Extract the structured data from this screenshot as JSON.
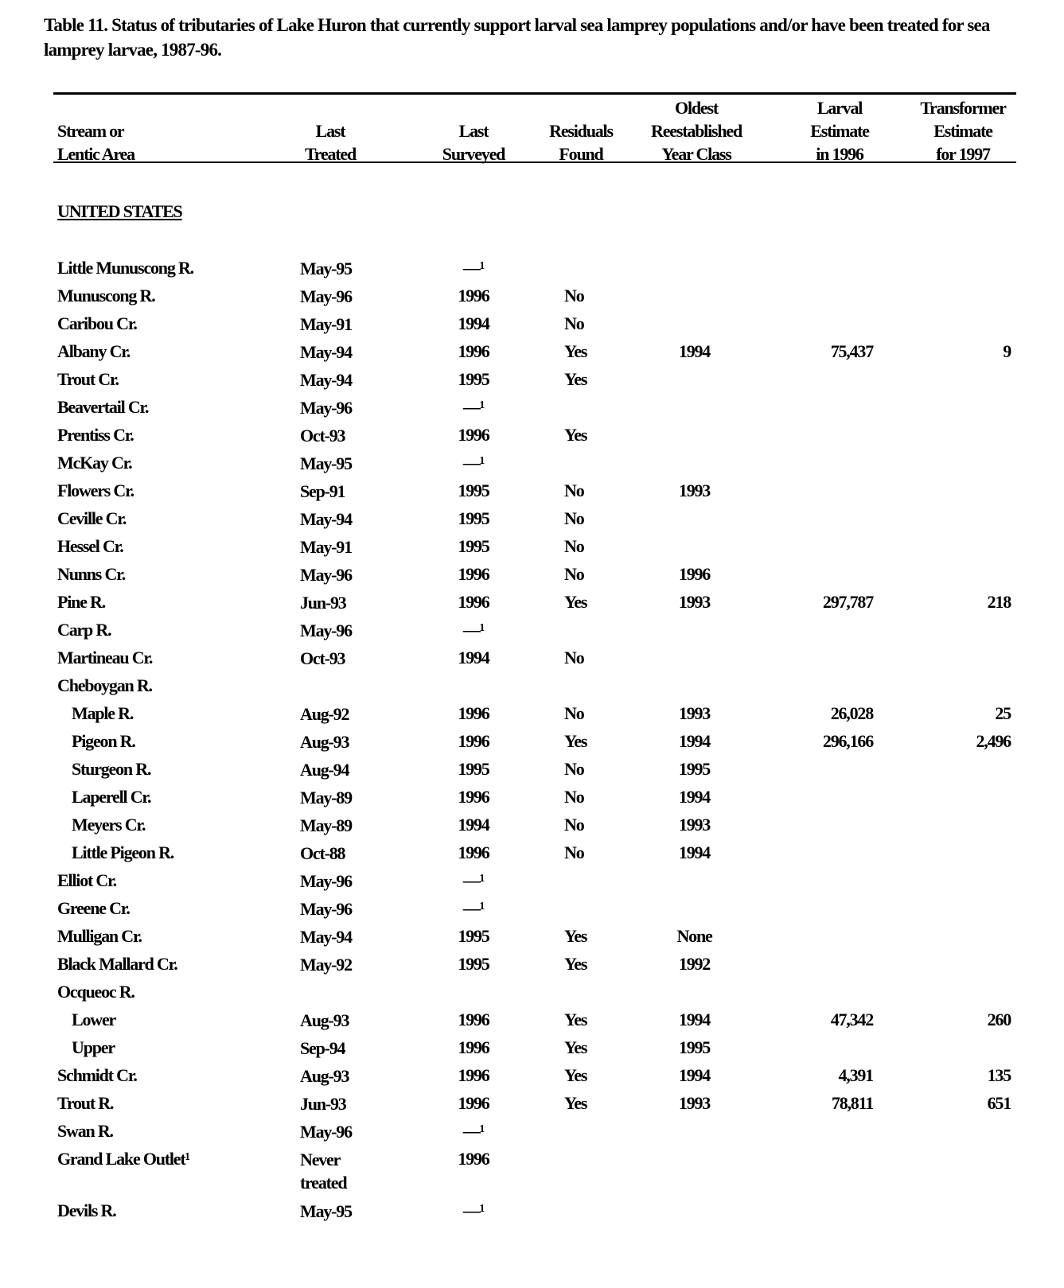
{
  "title": "Table 11.  Status of tributaries of Lake Huron that currently support larval sea lamprey populations and/or have been treated for sea lamprey larvae, 1987-96.",
  "headers": {
    "stream": [
      "Stream or",
      "Lentic Area"
    ],
    "treated": [
      "Last",
      "Treated"
    ],
    "surveyed": [
      "Last",
      "Surveyed"
    ],
    "residuals": [
      "Residuals",
      "Found"
    ],
    "oldest": [
      "Oldest",
      "Reestablished",
      "Year Class"
    ],
    "larval": [
      "Larval",
      "Estimate",
      "in 1996"
    ],
    "transformer": [
      "Transformer",
      "Estimate",
      "for 1997"
    ]
  },
  "section": "UNITED STATES",
  "rows": [
    {
      "name": "Little Munuscong R.",
      "treated": "May-95",
      "surveyed": "—¹",
      "residuals": "",
      "oldest": "",
      "larval": "",
      "transformer": ""
    },
    {
      "name": "Munuscong R.",
      "treated": "May-96",
      "surveyed": "1996",
      "residuals": "No",
      "oldest": "",
      "larval": "",
      "transformer": ""
    },
    {
      "name": "Caribou Cr.",
      "treated": "May-91",
      "surveyed": "1994",
      "residuals": "No",
      "oldest": "",
      "larval": "",
      "transformer": ""
    },
    {
      "name": "Albany Cr.",
      "treated": "May-94",
      "surveyed": "1996",
      "residuals": "Yes",
      "oldest": "1994",
      "larval": "75,437",
      "transformer": "9"
    },
    {
      "name": "Trout Cr.",
      "treated": "May-94",
      "surveyed": "1995",
      "residuals": "Yes",
      "oldest": "",
      "larval": "",
      "transformer": ""
    },
    {
      "name": "Beavertail Cr.",
      "treated": "May-96",
      "surveyed": "—¹",
      "residuals": "",
      "oldest": "",
      "larval": "",
      "transformer": ""
    },
    {
      "name": "Prentiss Cr.",
      "treated": "Oct-93",
      "surveyed": "1996",
      "residuals": "Yes",
      "oldest": "",
      "larval": "",
      "transformer": ""
    },
    {
      "name": "McKay Cr.",
      "treated": "May-95",
      "surveyed": "—¹",
      "residuals": "",
      "oldest": "",
      "larval": "",
      "transformer": ""
    },
    {
      "name": "Flowers Cr.",
      "treated": "Sep-91",
      "surveyed": "1995",
      "residuals": "No",
      "oldest": "1993",
      "larval": "",
      "transformer": ""
    },
    {
      "name": "Ceville Cr.",
      "treated": "May-94",
      "surveyed": "1995",
      "residuals": "No",
      "oldest": "",
      "larval": "",
      "transformer": ""
    },
    {
      "name": "Hessel Cr.",
      "treated": "May-91",
      "surveyed": "1995",
      "residuals": "No",
      "oldest": "",
      "larval": "",
      "transformer": ""
    },
    {
      "name": "Nunns Cr.",
      "treated": "May-96",
      "surveyed": "1996",
      "residuals": "No",
      "oldest": "1996",
      "larval": "",
      "transformer": ""
    },
    {
      "name": "Pine R.",
      "treated": "Jun-93",
      "surveyed": "1996",
      "residuals": "Yes",
      "oldest": "1993",
      "larval": "297,787",
      "transformer": "218"
    },
    {
      "name": "Carp R.",
      "treated": "May-96",
      "surveyed": "—¹",
      "residuals": "",
      "oldest": "",
      "larval": "",
      "transformer": ""
    },
    {
      "name": "Martineau Cr.",
      "treated": "Oct-93",
      "surveyed": "1994",
      "residuals": "No",
      "oldest": "",
      "larval": "",
      "transformer": ""
    },
    {
      "name": "Cheboygan R.",
      "treated": "",
      "surveyed": "",
      "residuals": "",
      "oldest": "",
      "larval": "",
      "transformer": ""
    },
    {
      "name": "Maple R.",
      "sub": true,
      "treated": "Aug-92",
      "surveyed": "1996",
      "residuals": "No",
      "oldest": "1993",
      "larval": "26,028",
      "transformer": "25"
    },
    {
      "name": "Pigeon R.",
      "sub": true,
      "treated": "Aug-93",
      "surveyed": "1996",
      "residuals": "Yes",
      "oldest": "1994",
      "larval": "296,166",
      "transformer": "2,496"
    },
    {
      "name": "Sturgeon R.",
      "sub": true,
      "treated": "Aug-94",
      "surveyed": "1995",
      "residuals": "No",
      "oldest": "1995",
      "larval": "",
      "transformer": ""
    },
    {
      "name": "Laperell Cr.",
      "sub": true,
      "treated": "May-89",
      "surveyed": "1996",
      "residuals": "No",
      "oldest": "1994",
      "larval": "",
      "transformer": ""
    },
    {
      "name": "Meyers Cr.",
      "sub": true,
      "treated": "May-89",
      "surveyed": "1994",
      "residuals": "No",
      "oldest": "1993",
      "larval": "",
      "transformer": ""
    },
    {
      "name": "Little Pigeon R.",
      "sub": true,
      "treated": "Oct-88",
      "surveyed": "1996",
      "residuals": "No",
      "oldest": "1994",
      "larval": "",
      "transformer": ""
    },
    {
      "name": "Elliot Cr.",
      "treated": "May-96",
      "surveyed": "—¹",
      "residuals": "",
      "oldest": "",
      "larval": "",
      "transformer": ""
    },
    {
      "name": "Greene Cr.",
      "treated": "May-96",
      "surveyed": "—¹",
      "residuals": "",
      "oldest": "",
      "larval": "",
      "transformer": ""
    },
    {
      "name": "Mulligan Cr.",
      "treated": "May-94",
      "surveyed": "1995",
      "residuals": "Yes",
      "oldest": "None",
      "larval": "",
      "transformer": ""
    },
    {
      "name": "Black Mallard Cr.",
      "treated": "May-92",
      "surveyed": "1995",
      "residuals": "Yes",
      "oldest": "1992",
      "larval": "",
      "transformer": ""
    },
    {
      "name": "Ocqueoc R.",
      "treated": "",
      "surveyed": "",
      "residuals": "",
      "oldest": "",
      "larval": "",
      "transformer": ""
    },
    {
      "name": "Lower",
      "sub": true,
      "treated": "Aug-93",
      "surveyed": "1996",
      "residuals": "Yes",
      "oldest": "1994",
      "larval": "47,342",
      "transformer": "260"
    },
    {
      "name": "Upper",
      "sub": true,
      "treated": "Sep-94",
      "surveyed": "1996",
      "residuals": "Yes",
      "oldest": "1995",
      "larval": "",
      "transformer": ""
    },
    {
      "name": "Schmidt Cr.",
      "treated": "Aug-93",
      "surveyed": "1996",
      "residuals": "Yes",
      "oldest": "1994",
      "larval": "4,391",
      "transformer": "135"
    },
    {
      "name": "Trout R.",
      "treated": "Jun-93",
      "surveyed": "1996",
      "residuals": "Yes",
      "oldest": "1993",
      "larval": "78,811",
      "transformer": "651"
    },
    {
      "name": "Swan R.",
      "treated": "May-96",
      "surveyed": "—¹",
      "residuals": "",
      "oldest": "",
      "larval": "",
      "transformer": ""
    },
    {
      "name": "Grand Lake Outlet¹",
      "tall": true,
      "treated": "Never treated",
      "surveyed": "1996",
      "residuals": "",
      "oldest": "",
      "larval": "",
      "transformer": ""
    },
    {
      "name": "Devils R.",
      "treated": "May-95",
      "surveyed": "—¹",
      "residuals": "",
      "oldest": "",
      "larval": "",
      "transformer": ""
    }
  ]
}
